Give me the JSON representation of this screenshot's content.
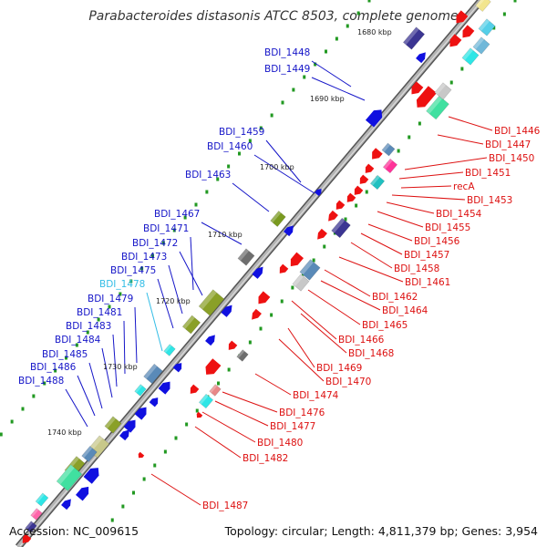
{
  "title": "Parabacteroides distasonis ATCC 8503, complete genome",
  "footer": {
    "accession": "Accession: NC_009615",
    "summary": "Topology: circular; Length: 4,811,379 bp; Genes: 3,954"
  },
  "scale_labels": [
    {
      "text": "1680 kbp"
    },
    {
      "text": "1690 kbp"
    },
    {
      "text": "1700 kbp"
    },
    {
      "text": "1710 kbp"
    },
    {
      "text": "1720 kbp"
    },
    {
      "text": "1730 kbp"
    },
    {
      "text": "1740 kbp"
    }
  ],
  "left_labels": [
    {
      "text": "BDI_1448",
      "color": "#1515c8"
    },
    {
      "text": "BDI_1449",
      "color": "#1515c8"
    },
    {
      "text": "BDI_1459",
      "color": "#1515c8"
    },
    {
      "text": "BDI_1460",
      "color": "#1515c8"
    },
    {
      "text": "BDI_1463",
      "color": "#1515c8"
    },
    {
      "text": "BDI_1467",
      "color": "#1515c8"
    },
    {
      "text": "BDI_1471",
      "color": "#1515c8"
    },
    {
      "text": "BDI_1472",
      "color": "#1515c8"
    },
    {
      "text": "BDI_1473",
      "color": "#1515c8"
    },
    {
      "text": "BDI_1475",
      "color": "#1515c8"
    },
    {
      "text": "BDI_1478",
      "color": "#33bde6"
    },
    {
      "text": "BDI_1479",
      "color": "#1515c8"
    },
    {
      "text": "BDI_1481",
      "color": "#1515c8"
    },
    {
      "text": "BDI_1483",
      "color": "#1515c8"
    },
    {
      "text": "BDI_1484",
      "color": "#1515c8"
    },
    {
      "text": "BDI_1485",
      "color": "#1515c8"
    },
    {
      "text": "BDI_1486",
      "color": "#1515c8"
    },
    {
      "text": "BDI_1488",
      "color": "#1515c8"
    }
  ],
  "right_labels": [
    {
      "text": "BDI_1446"
    },
    {
      "text": "BDI_1447"
    },
    {
      "text": "BDI_1450"
    },
    {
      "text": "BDI_1451"
    },
    {
      "text": "recA"
    },
    {
      "text": "BDI_1453"
    },
    {
      "text": "BDI_1454"
    },
    {
      "text": "BDI_1455"
    },
    {
      "text": "BDI_1456"
    },
    {
      "text": "BDI_1457"
    },
    {
      "text": "BDI_1458"
    },
    {
      "text": "BDI_1461"
    },
    {
      "text": "BDI_1462"
    },
    {
      "text": "BDI_1464"
    },
    {
      "text": "BDI_1465"
    },
    {
      "text": "BDI_1466"
    },
    {
      "text": "BDI_1468"
    },
    {
      "text": "BDI_1469"
    },
    {
      "text": "BDI_1470"
    },
    {
      "text": "BDI_1474"
    },
    {
      "text": "BDI_1476"
    },
    {
      "text": "BDI_1477"
    },
    {
      "text": "BDI_1480"
    },
    {
      "text": "BDI_1482"
    },
    {
      "text": "BDI_1487"
    }
  ],
  "colors": {
    "forward_strand": "#1010e0",
    "reverse_strand": "#ee1111",
    "right_label": "#dd1111",
    "backbone": "#8a8a8a",
    "gc_dots": "#229922"
  }
}
